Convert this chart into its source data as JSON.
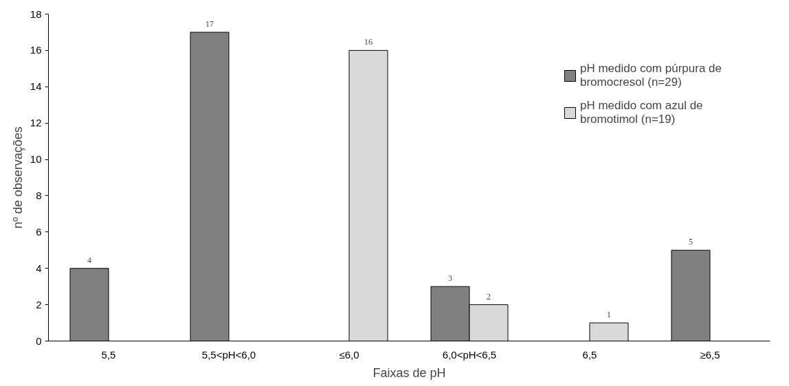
{
  "chart_data": {
    "type": "bar",
    "xlabel": "Faixas de pH",
    "ylabel": "nº de observações",
    "categories": [
      "5,5",
      "5,5<pH<6,0",
      "≤6,0",
      "6,0<pH<6,5",
      "6,5",
      "≥6,5"
    ],
    "series": [
      {
        "name": "pH medido com púrpura de bromocresol (n=29)",
        "color": "#808080",
        "values": [
          4,
          17,
          null,
          3,
          null,
          5
        ]
      },
      {
        "name": "pH medido com azul de bromotimol (n=19)",
        "color": "#d9d9d9",
        "values": [
          null,
          null,
          16,
          2,
          1,
          null
        ]
      }
    ],
    "ylim": [
      0,
      18
    ],
    "yticks": [
      0,
      2,
      4,
      6,
      8,
      10,
      12,
      14,
      16,
      18
    ],
    "grid": false,
    "legend": "top right",
    "data_labels": true
  }
}
